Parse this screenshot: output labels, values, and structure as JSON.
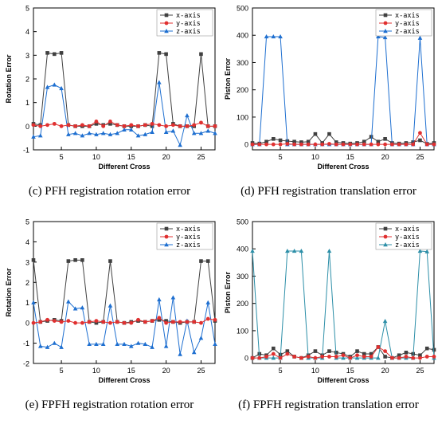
{
  "chart_data": [
    {
      "panel_id": "c",
      "type": "line",
      "caption_letter": "(c)",
      "caption_text": "PFH registration rotation error",
      "xlabel": "Different Cross",
      "ylabel": "Rotation Error",
      "xlim": [
        1,
        27
      ],
      "ylim": [
        -1,
        5
      ],
      "xticks": [
        5,
        10,
        15,
        20,
        25
      ],
      "yticks": [
        -1,
        0,
        1,
        2,
        3,
        4,
        5
      ],
      "legend_position": "top-right",
      "x": [
        1,
        2,
        3,
        4,
        5,
        6,
        7,
        8,
        9,
        10,
        11,
        12,
        13,
        14,
        15,
        16,
        17,
        18,
        19,
        20,
        21,
        22,
        23,
        24,
        25,
        26,
        27
      ],
      "series": [
        {
          "name": "x-axis",
          "color": "#404040",
          "marker": "square",
          "values": [
            0.1,
            0.05,
            3.1,
            3.05,
            3.1,
            0.05,
            0.0,
            0.0,
            0.0,
            0.1,
            0.05,
            0.1,
            0.05,
            0.0,
            0.0,
            0.0,
            0.05,
            0.0,
            3.1,
            3.05,
            0.1,
            0.0,
            0.0,
            0.0,
            3.05,
            0.0,
            0.0
          ]
        },
        {
          "name": "y-axis",
          "color": "#e03030",
          "marker": "circle",
          "values": [
            0.05,
            0.0,
            0.05,
            0.1,
            0.0,
            0.05,
            0.0,
            0.05,
            0.0,
            0.2,
            0.0,
            0.2,
            0.05,
            0.0,
            0.05,
            0.0,
            0.05,
            0.1,
            0.05,
            0.0,
            0.05,
            0.0,
            0.0,
            0.05,
            0.15,
            0.0,
            0.0
          ]
        },
        {
          "name": "z-axis",
          "color": "#1e6fd0",
          "marker": "triangle",
          "values": [
            -0.45,
            -0.4,
            1.65,
            1.75,
            1.6,
            -0.35,
            -0.3,
            -0.4,
            -0.3,
            -0.35,
            -0.3,
            -0.35,
            -0.3,
            -0.15,
            -0.15,
            -0.4,
            -0.35,
            -0.25,
            1.85,
            -0.25,
            -0.2,
            -0.8,
            0.45,
            -0.3,
            -0.3,
            -0.2,
            -0.3
          ]
        }
      ]
    },
    {
      "panel_id": "d",
      "type": "line",
      "caption_letter": "(d)",
      "caption_text": "PFH registration translation error",
      "xlabel": "Different Cross",
      "ylabel": "Piston Error",
      "xlim": [
        1,
        27
      ],
      "ylim": [
        -20,
        500
      ],
      "xticks": [
        5,
        10,
        15,
        20,
        25
      ],
      "yticks": [
        0,
        100,
        200,
        300,
        400,
        500
      ],
      "legend_position": "top-right",
      "x": [
        1,
        2,
        3,
        4,
        5,
        6,
        7,
        8,
        9,
        10,
        11,
        12,
        13,
        14,
        15,
        16,
        17,
        18,
        19,
        20,
        21,
        22,
        23,
        24,
        25,
        26,
        27
      ],
      "series": [
        {
          "name": "x-axis",
          "color": "#404040",
          "marker": "square",
          "values": [
            5,
            3,
            10,
            20,
            15,
            12,
            10,
            8,
            10,
            38,
            5,
            38,
            8,
            5,
            3,
            5,
            10,
            28,
            10,
            20,
            5,
            3,
            5,
            8,
            15,
            2,
            5
          ]
        },
        {
          "name": "y-axis",
          "color": "#e03030",
          "marker": "circle",
          "values": [
            0,
            0,
            0,
            0,
            0,
            2,
            0,
            0,
            0,
            0,
            0,
            2,
            0,
            0,
            0,
            0,
            0,
            0,
            0,
            0,
            0,
            0,
            0,
            0,
            42,
            0,
            0
          ]
        },
        {
          "name": "z-axis",
          "color": "#1e6fd0",
          "marker": "triangle",
          "values": [
            0,
            0,
            395,
            395,
            395,
            0,
            0,
            0,
            0,
            0,
            0,
            0,
            0,
            0,
            0,
            0,
            0,
            0,
            395,
            392,
            0,
            0,
            0,
            0,
            390,
            0,
            0
          ]
        }
      ]
    },
    {
      "panel_id": "e",
      "type": "line",
      "caption_letter": "(e)",
      "caption_text": "FPFH registration rotation error",
      "xlabel": "Different Cross",
      "ylabel": "Rotation Error",
      "xlim": [
        1,
        27
      ],
      "ylim": [
        -2,
        5
      ],
      "xticks": [
        5,
        10,
        15,
        20,
        25
      ],
      "yticks": [
        -2,
        -1,
        0,
        1,
        2,
        3,
        4,
        5
      ],
      "legend_position": "top-right",
      "x": [
        1,
        2,
        3,
        4,
        5,
        6,
        7,
        8,
        9,
        10,
        11,
        12,
        13,
        14,
        15,
        16,
        17,
        18,
        19,
        20,
        21,
        22,
        23,
        24,
        25,
        26,
        27
      ],
      "series": [
        {
          "name": "x-axis",
          "color": "#404040",
          "marker": "square",
          "values": [
            3.1,
            0.05,
            0.1,
            0.15,
            0.1,
            3.05,
            3.1,
            3.1,
            0.05,
            0.0,
            0.05,
            3.05,
            0.05,
            0.0,
            0.05,
            0.1,
            0.05,
            0.1,
            0.15,
            0.1,
            0.05,
            0.0,
            0.05,
            0.05,
            3.05,
            3.05,
            0.1
          ]
        },
        {
          "name": "y-axis",
          "color": "#e03030",
          "marker": "circle",
          "values": [
            0.0,
            0.05,
            0.15,
            0.1,
            0.05,
            0.1,
            0.0,
            0.0,
            0.05,
            0.1,
            0.05,
            0.0,
            0.05,
            0.0,
            0.0,
            0.15,
            0.05,
            0.1,
            0.25,
            0.0,
            0.05,
            0.05,
            0.05,
            0.05,
            0.0,
            0.2,
            0.15
          ]
        },
        {
          "name": "z-axis",
          "color": "#1e6fd0",
          "marker": "triangle",
          "values": [
            1.0,
            -1.15,
            -1.2,
            -1.0,
            -1.2,
            1.05,
            0.7,
            0.75,
            -1.05,
            -1.05,
            -1.05,
            0.85,
            -1.05,
            -1.05,
            -1.15,
            -1.0,
            -1.05,
            -1.2,
            1.15,
            -1.15,
            1.25,
            -1.55,
            0.1,
            -1.45,
            -0.75,
            1.0,
            -1.05
          ]
        }
      ]
    },
    {
      "panel_id": "f",
      "type": "line",
      "caption_letter": "(f)",
      "caption_text": "FPFH registration translation error",
      "xlabel": "Different Cross",
      "ylabel": "Piston Error",
      "xlim": [
        1,
        27
      ],
      "ylim": [
        -20,
        500
      ],
      "xticks": [
        5,
        10,
        15,
        20,
        25
      ],
      "yticks": [
        0,
        100,
        200,
        300,
        400,
        500
      ],
      "legend_position": "top-right",
      "x": [
        1,
        2,
        3,
        4,
        5,
        6,
        7,
        8,
        9,
        10,
        11,
        12,
        13,
        14,
        15,
        16,
        17,
        18,
        19,
        20,
        21,
        22,
        23,
        24,
        25,
        26,
        27
      ],
      "series": [
        {
          "name": "x-axis",
          "color": "#404040",
          "marker": "square",
          "values": [
            0,
            15,
            10,
            35,
            12,
            25,
            5,
            0,
            10,
            25,
            10,
            25,
            20,
            15,
            5,
            25,
            15,
            15,
            40,
            5,
            0,
            10,
            20,
            15,
            10,
            35,
            30
          ]
        },
        {
          "name": "y-axis",
          "color": "#e03030",
          "marker": "circle",
          "values": [
            0,
            0,
            5,
            15,
            0,
            15,
            5,
            0,
            5,
            0,
            5,
            5,
            5,
            10,
            0,
            10,
            5,
            5,
            40,
            25,
            0,
            0,
            5,
            0,
            0,
            5,
            5
          ]
        },
        {
          "name": "z-axis",
          "color": "#2d8fa8",
          "marker": "triangle",
          "values": [
            392,
            0,
            0,
            0,
            0,
            392,
            392,
            392,
            0,
            0,
            0,
            392,
            0,
            0,
            0,
            0,
            0,
            0,
            0,
            135,
            0,
            0,
            0,
            0,
            392,
            390,
            0
          ]
        }
      ]
    }
  ]
}
